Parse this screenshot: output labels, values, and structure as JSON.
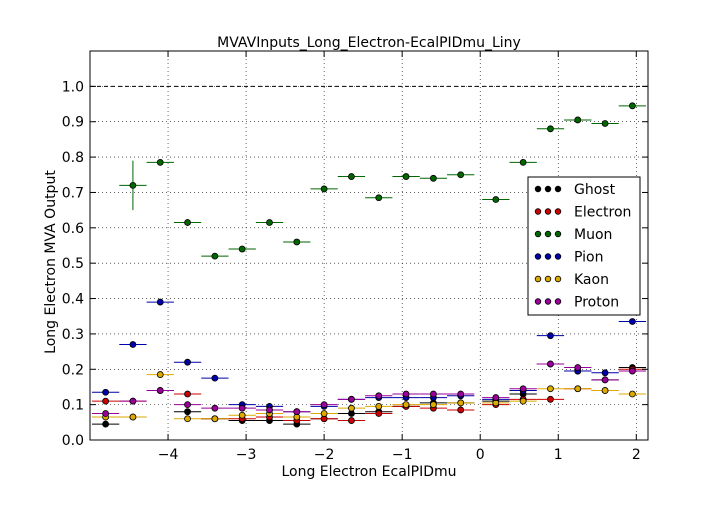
{
  "chart_data": {
    "type": "scatter",
    "title": "MVAVInputs_Long_Electron-EcalPIDmu_Liny",
    "xlabel": "Long Electron EcalPIDmu",
    "ylabel": "Long Electron MVA Output",
    "xlim": [
      -5.0,
      2.15
    ],
    "ylim": [
      0.0,
      1.1
    ],
    "x_ticks": [
      -4,
      -3,
      -2,
      -1,
      0,
      1,
      2
    ],
    "x_tick_labels": [
      "−4",
      "−3",
      "−2",
      "−1",
      "0",
      "1",
      "2"
    ],
    "y_ticks": [
      0.0,
      0.1,
      0.2,
      0.3,
      0.4,
      0.5,
      0.6,
      0.7,
      0.8,
      0.9,
      1.0
    ],
    "y_tick_labels": [
      "0.0",
      "0.1",
      "0.2",
      "0.3",
      "0.4",
      "0.5",
      "0.6",
      "0.7",
      "0.8",
      "0.9",
      "1.0"
    ],
    "grid": true,
    "reference_line": 1.0,
    "legend_position": "right",
    "bin_centers": [
      -4.8,
      -4.45,
      -4.1,
      -3.75,
      -3.4,
      -3.05,
      -2.7,
      -2.35,
      -2.0,
      -1.65,
      -1.3,
      -0.95,
      -0.6,
      -0.25,
      0.2,
      0.55,
      0.9,
      1.25,
      1.6,
      1.95
    ],
    "bin_half_width": 0.175,
    "series": [
      {
        "name": "Ghost",
        "color": "#000000",
        "y": [
          0.045,
          0.065,
          0.14,
          0.08,
          0.06,
          0.055,
          0.055,
          0.045,
          0.06,
          0.075,
          0.08,
          0.095,
          0.105,
          0.105,
          0.11,
          0.13,
          0.215,
          0.195,
          0.17,
          0.205
        ]
      },
      {
        "name": "Electron",
        "color": "#cc0000",
        "y": [
          0.11,
          0.11,
          0.14,
          0.13,
          0.06,
          0.06,
          0.065,
          0.055,
          0.06,
          0.055,
          0.075,
          0.095,
          0.09,
          0.085,
          0.1,
          0.115,
          0.115,
          0.145,
          0.14,
          0.2
        ]
      },
      {
        "name": "Muon",
        "color": "#006600",
        "y": [
          null,
          0.72,
          0.785,
          0.615,
          0.52,
          0.54,
          0.615,
          0.56,
          0.71,
          0.745,
          0.685,
          0.745,
          0.74,
          0.75,
          0.68,
          0.785,
          0.88,
          0.905,
          0.895,
          0.945
        ],
        "yerr": [
          null,
          0.07,
          0.005,
          0.01,
          0.005,
          0.005,
          0.005,
          0.005,
          0.005,
          0.005,
          0.005,
          0.005,
          0.005,
          0.005,
          0.005,
          0.005,
          0.005,
          0.005,
          0.005,
          0.005
        ]
      },
      {
        "name": "Pion",
        "color": "#0000aa",
        "y": [
          0.135,
          0.27,
          0.39,
          0.22,
          0.175,
          0.1,
          0.095,
          0.08,
          0.095,
          0.115,
          0.12,
          0.12,
          0.12,
          0.125,
          0.115,
          0.14,
          0.295,
          0.195,
          0.19,
          0.335
        ]
      },
      {
        "name": "Kaon",
        "color": "#ddaa00",
        "y": [
          0.065,
          0.065,
          0.185,
          0.06,
          0.06,
          0.07,
          0.075,
          0.065,
          0.075,
          0.09,
          0.095,
          0.1,
          0.1,
          0.105,
          0.105,
          0.11,
          0.145,
          0.145,
          0.14,
          0.13
        ]
      },
      {
        "name": "Proton",
        "color": "#990099",
        "y": [
          0.075,
          0.11,
          0.14,
          0.1,
          0.09,
          0.09,
          0.085,
          0.08,
          0.1,
          0.115,
          0.125,
          0.13,
          0.13,
          0.13,
          0.12,
          0.145,
          0.215,
          0.205,
          0.17,
          0.195
        ]
      }
    ]
  }
}
